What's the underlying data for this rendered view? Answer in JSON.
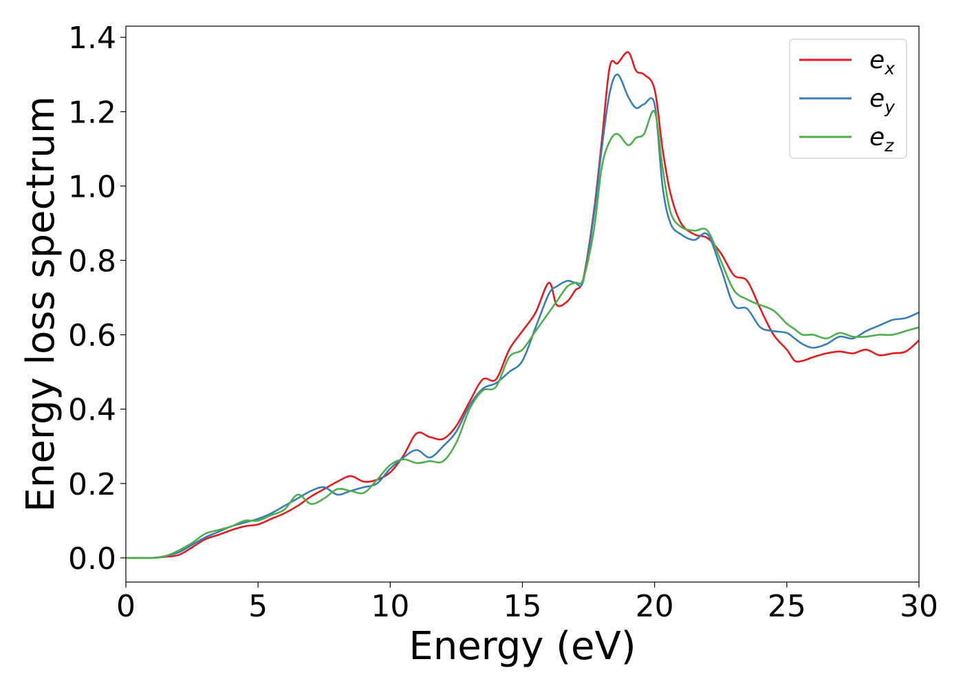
{
  "chart_data": {
    "type": "line",
    "title": "",
    "xlabel": "Energy (eV)",
    "ylabel": "Energy loss spectrum",
    "xlim": [
      0,
      30
    ],
    "ylim": [
      -0.065,
      1.43
    ],
    "xticks": [
      0,
      5,
      10,
      15,
      20,
      25,
      30
    ],
    "xtick_labels": [
      "0",
      "5",
      "10",
      "15",
      "20",
      "25",
      "30"
    ],
    "yticks": [
      0.0,
      0.2,
      0.4,
      0.6,
      0.8,
      1.0,
      1.2,
      1.4
    ],
    "ytick_labels": [
      "0.0",
      "0.2",
      "0.4",
      "0.6",
      "0.8",
      "1.0",
      "1.2",
      "1.4"
    ],
    "grid": false,
    "legend_position": "top-right",
    "series": [
      {
        "name": "e_x",
        "legend_main": "e",
        "legend_sub": "x",
        "color": "#e41a1c",
        "x": [
          0,
          1,
          1.5,
          2,
          2.5,
          3,
          3.5,
          4,
          4.5,
          5,
          5.5,
          6,
          6.5,
          7,
          7.5,
          8,
          8.5,
          9,
          9.5,
          10,
          10.5,
          11,
          11.5,
          12,
          12.5,
          13,
          13.5,
          14,
          14.5,
          15,
          15.5,
          16,
          16.3,
          16.7,
          17,
          17.3,
          17.7,
          18,
          18.3,
          18.6,
          19,
          19.3,
          19.6,
          20,
          20.3,
          20.6,
          21,
          21.5,
          22,
          22.5,
          23,
          23.5,
          24,
          24.5,
          25,
          25.3,
          25.6,
          26,
          26.5,
          27,
          27.5,
          28,
          28.5,
          29,
          29.5,
          30
        ],
        "y": [
          0.0,
          0.0,
          0.003,
          0.008,
          0.028,
          0.05,
          0.062,
          0.075,
          0.085,
          0.09,
          0.105,
          0.12,
          0.14,
          0.165,
          0.185,
          0.205,
          0.22,
          0.205,
          0.21,
          0.23,
          0.275,
          0.335,
          0.325,
          0.32,
          0.355,
          0.42,
          0.48,
          0.48,
          0.56,
          0.61,
          0.66,
          0.74,
          0.68,
          0.69,
          0.72,
          0.75,
          0.93,
          1.12,
          1.32,
          1.33,
          1.36,
          1.31,
          1.3,
          1.26,
          1.1,
          0.98,
          0.9,
          0.87,
          0.86,
          0.82,
          0.76,
          0.745,
          0.67,
          0.6,
          0.56,
          0.53,
          0.53,
          0.54,
          0.55,
          0.555,
          0.55,
          0.56,
          0.545,
          0.55,
          0.555,
          0.585
        ]
      },
      {
        "name": "e_y",
        "legend_main": "e",
        "legend_sub": "y",
        "color": "#377eb8",
        "x": [
          0,
          1,
          1.5,
          2,
          2.5,
          3,
          3.5,
          4,
          4.5,
          5,
          5.5,
          6,
          6.5,
          7,
          7.5,
          8,
          8.5,
          9,
          9.5,
          10,
          10.5,
          11,
          11.5,
          12,
          12.5,
          13,
          13.5,
          14,
          14.5,
          15,
          15.5,
          16,
          16.3,
          16.7,
          17,
          17.3,
          17.7,
          18,
          18.3,
          18.6,
          19,
          19.3,
          19.6,
          20,
          20.3,
          20.6,
          21,
          21.5,
          22,
          22.5,
          23,
          23.5,
          24,
          24.5,
          25,
          25.3,
          25.6,
          26,
          26.5,
          27,
          27.5,
          28,
          28.5,
          29,
          29.5,
          30
        ],
        "y": [
          0.0,
          0.0,
          0.005,
          0.015,
          0.035,
          0.055,
          0.07,
          0.085,
          0.095,
          0.105,
          0.12,
          0.14,
          0.16,
          0.18,
          0.19,
          0.17,
          0.18,
          0.19,
          0.2,
          0.24,
          0.27,
          0.29,
          0.27,
          0.3,
          0.34,
          0.41,
          0.455,
          0.47,
          0.5,
          0.53,
          0.62,
          0.71,
          0.73,
          0.745,
          0.74,
          0.745,
          0.92,
          1.1,
          1.25,
          1.3,
          1.24,
          1.21,
          1.22,
          1.22,
          1.0,
          0.9,
          0.87,
          0.855,
          0.87,
          0.78,
          0.68,
          0.67,
          0.62,
          0.61,
          0.605,
          0.59,
          0.575,
          0.565,
          0.575,
          0.595,
          0.59,
          0.61,
          0.625,
          0.64,
          0.645,
          0.66
        ]
      },
      {
        "name": "e_z",
        "legend_main": "e",
        "legend_sub": "z",
        "color": "#4daf4a",
        "x": [
          0,
          1,
          1.5,
          2,
          2.5,
          3,
          3.5,
          4,
          4.5,
          5,
          5.5,
          6,
          6.5,
          7,
          7.5,
          8,
          8.5,
          9,
          9.5,
          10,
          10.5,
          11,
          11.5,
          12,
          12.5,
          13,
          13.5,
          14,
          14.5,
          15,
          15.5,
          16,
          16.3,
          16.7,
          17,
          17.3,
          17.7,
          18,
          18.3,
          18.6,
          19,
          19.3,
          19.6,
          20,
          20.3,
          20.6,
          21,
          21.5,
          22,
          22.5,
          23,
          23.5,
          24,
          24.5,
          25,
          25.3,
          25.6,
          26,
          26.5,
          27,
          27.5,
          28,
          28.5,
          29,
          29.5,
          30
        ],
        "y": [
          0.0,
          0.0,
          0.005,
          0.02,
          0.04,
          0.065,
          0.075,
          0.085,
          0.1,
          0.1,
          0.115,
          0.13,
          0.17,
          0.145,
          0.16,
          0.185,
          0.18,
          0.175,
          0.21,
          0.25,
          0.265,
          0.255,
          0.26,
          0.26,
          0.31,
          0.4,
          0.45,
          0.46,
          0.54,
          0.56,
          0.61,
          0.66,
          0.69,
          0.73,
          0.74,
          0.75,
          0.88,
          1.05,
          1.12,
          1.14,
          1.11,
          1.13,
          1.14,
          1.2,
          1.05,
          0.93,
          0.89,
          0.88,
          0.88,
          0.8,
          0.72,
          0.695,
          0.68,
          0.665,
          0.63,
          0.615,
          0.6,
          0.6,
          0.59,
          0.605,
          0.595,
          0.595,
          0.6,
          0.6,
          0.61,
          0.62
        ]
      }
    ]
  }
}
